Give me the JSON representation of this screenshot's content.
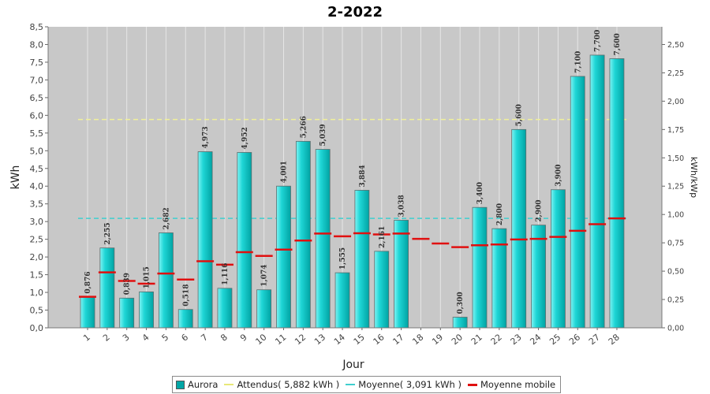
{
  "chart_data": {
    "type": "bar",
    "title": "2-2022",
    "xlabel": "Jour",
    "ylabel": "kWh",
    "y2label": "kWh/kWp",
    "ylim": [
      0,
      8.5
    ],
    "y2lim": [
      0,
      2.6563
    ],
    "yticks": [
      "0,0",
      "0,5",
      "1,0",
      "1,5",
      "2,0",
      "2,5",
      "3,0",
      "3,5",
      "4,0",
      "4,5",
      "5,0",
      "5,5",
      "6,0",
      "6,5",
      "7,0",
      "7,5",
      "8,0",
      "8,5"
    ],
    "y2ticks": [
      "0,00",
      "0,25",
      "0,50",
      "0,75",
      "1,00",
      "1,25",
      "1,50",
      "1,75",
      "2,00",
      "2,25",
      "2,50"
    ],
    "categories": [
      "1",
      "2",
      "3",
      "4",
      "5",
      "6",
      "7",
      "8",
      "9",
      "10",
      "11",
      "12",
      "13",
      "14",
      "15",
      "16",
      "17",
      "18",
      "19",
      "20",
      "21",
      "22",
      "23",
      "24",
      "25",
      "26",
      "27",
      "28"
    ],
    "series": [
      {
        "name": "Aurora",
        "type": "bar",
        "color": "#00c4c4",
        "values": [
          0.876,
          2.255,
          0.839,
          1.015,
          2.682,
          0.518,
          4.973,
          1.116,
          4.952,
          1.074,
          4.001,
          5.266,
          5.039,
          1.555,
          3.884,
          2.161,
          3.038,
          null,
          null,
          0.3,
          3.4,
          2.8,
          5.6,
          2.9,
          3.9,
          7.1,
          7.7,
          7.6
        ],
        "labels": [
          "0,876",
          "2,255",
          "0,839",
          "1,015",
          "2,682",
          "0,518",
          "4,973",
          "1,116",
          "4,952",
          "1,074",
          "4,001",
          "5,266",
          "5,039",
          "1,555",
          "3,884",
          "2,161",
          "3,038",
          "",
          "",
          "0,300",
          "3,400",
          "2,800",
          "5,600",
          "2,900",
          "3,900",
          "7,100",
          "7,700",
          "7,600"
        ]
      },
      {
        "name": "Attendus( 5,882 kWh )",
        "type": "hline",
        "color": "#f0f09a",
        "value": 5.882
      },
      {
        "name": "Moyenne( 3,091 kWh )",
        "type": "hline",
        "color": "#3fcfcf",
        "value": 3.091
      },
      {
        "name": "Moyenne mobile",
        "type": "step",
        "color": "#e01010",
        "values": [
          0.876,
          1.566,
          1.323,
          1.246,
          1.533,
          1.364,
          1.88,
          1.784,
          2.136,
          2.03,
          2.209,
          2.464,
          2.662,
          2.583,
          2.67,
          2.638,
          2.661,
          2.513,
          2.381,
          2.277,
          2.331,
          2.352,
          2.494,
          2.511,
          2.567,
          2.741,
          2.925,
          3.091
        ]
      }
    ],
    "legend_position": "bottom",
    "grid": true
  }
}
